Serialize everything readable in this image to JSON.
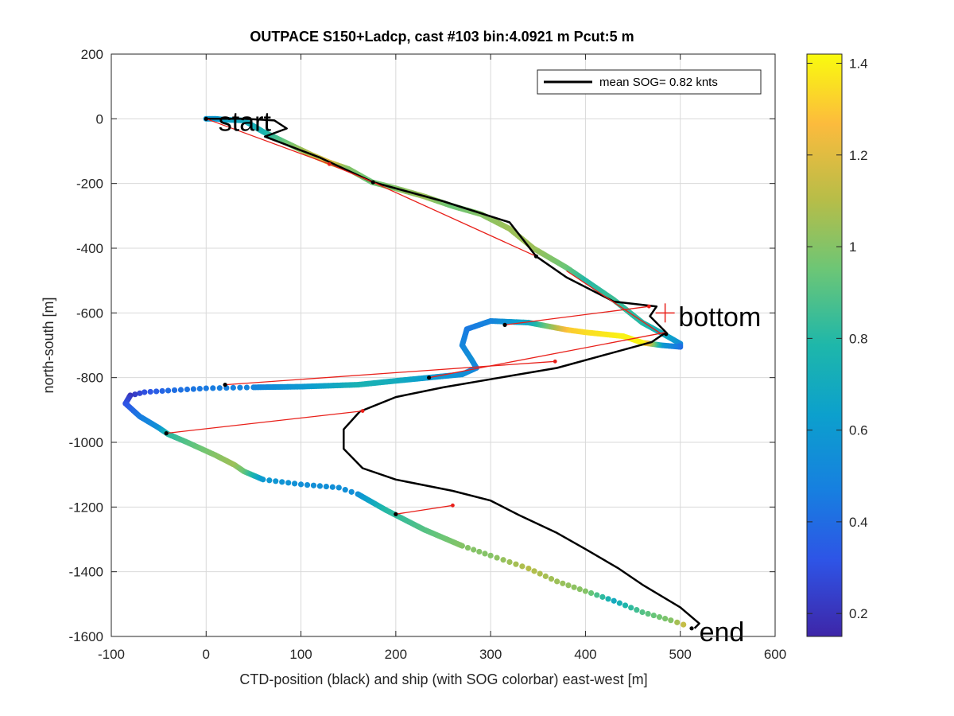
{
  "chart_data": {
    "type": "line",
    "title": "OUTPACE S150+Ladcp, cast #103 bin:4.0921 m  Pcut:5 m",
    "xlabel": "CTD-position (black) and ship (with SOG colorbar) east-west [m]",
    "ylabel": "north-south [m]",
    "xlim": [
      -100,
      600
    ],
    "ylim": [
      -1600,
      200
    ],
    "xticks": [
      -100,
      0,
      100,
      200,
      300,
      400,
      500,
      600
    ],
    "yticks": [
      -1600,
      -1400,
      -1200,
      -1000,
      -800,
      -600,
      -400,
      -200,
      0,
      200
    ],
    "grid": true,
    "legend": {
      "position": "top-right",
      "entries": [
        "mean SOG=  0.82 knts"
      ]
    },
    "colorbar": {
      "min": 0.15,
      "max": 1.42,
      "ticks": [
        0.2,
        0.4,
        0.6,
        0.8,
        1,
        1.2,
        1.4
      ],
      "tick_labels": [
        "0.2",
        "0.4",
        "0.6",
        "0.8",
        "1",
        "1.2",
        "1.4"
      ],
      "colormap": "parula"
    },
    "annotations": [
      {
        "text": "start",
        "x": 13,
        "y": -8
      },
      {
        "text": "bottom",
        "x": 498,
        "y": -612
      },
      {
        "text": "end",
        "x": 520,
        "y": -1585
      }
    ],
    "ctd_path": {
      "name": "CTD-position",
      "color": "#000000",
      "points": [
        [
          0,
          0
        ],
        [
          40,
          0
        ],
        [
          72,
          -5
        ],
        [
          85,
          -30
        ],
        [
          62,
          -55
        ],
        [
          120,
          -120
        ],
        [
          176,
          -196
        ],
        [
          250,
          -255
        ],
        [
          320,
          -320
        ],
        [
          348,
          -425
        ],
        [
          380,
          -490
        ],
        [
          430,
          -565
        ],
        [
          475,
          -580
        ],
        [
          468,
          -610
        ],
        [
          485,
          -660
        ],
        [
          470,
          -690
        ],
        [
          420,
          -730
        ],
        [
          370,
          -770
        ],
        [
          300,
          -805
        ],
        [
          250,
          -830
        ],
        [
          200,
          -860
        ],
        [
          162,
          -905
        ],
        [
          145,
          -960
        ],
        [
          145,
          -1020
        ],
        [
          165,
          -1080
        ],
        [
          200,
          -1115
        ],
        [
          260,
          -1150
        ],
        [
          300,
          -1180
        ],
        [
          330,
          -1225
        ],
        [
          370,
          -1280
        ],
        [
          400,
          -1330
        ],
        [
          435,
          -1390
        ],
        [
          460,
          -1440
        ],
        [
          500,
          -1510
        ],
        [
          520,
          -1560
        ],
        [
          515,
          -1575
        ]
      ]
    },
    "ship_track": {
      "name": "ship (SOG)",
      "points": [
        [
          0,
          0,
          0.6
        ],
        [
          10,
          0,
          0.6
        ],
        [
          20,
          -3,
          0.65
        ],
        [
          40,
          -5,
          0.7
        ],
        [
          60,
          -40,
          0.75
        ],
        [
          85,
          -75,
          0.95
        ],
        [
          110,
          -110,
          1.1
        ],
        [
          130,
          -135,
          1.2
        ],
        [
          150,
          -155,
          1.0
        ],
        [
          175,
          -196,
          0.95
        ],
        [
          200,
          -215,
          1.0
        ],
        [
          230,
          -240,
          1.05
        ],
        [
          260,
          -270,
          0.95
        ],
        [
          290,
          -295,
          1.0
        ],
        [
          320,
          -340,
          1.05
        ],
        [
          345,
          -400,
          1.05
        ],
        [
          380,
          -460,
          0.95
        ],
        [
          400,
          -500,
          0.8
        ],
        [
          430,
          -560,
          0.85
        ],
        [
          460,
          -630,
          0.8
        ],
        [
          485,
          -670,
          0.7
        ],
        [
          500,
          -695,
          0.55
        ],
        [
          500,
          -705,
          0.4
        ],
        [
          480,
          -700,
          0.6
        ],
        [
          460,
          -692,
          1.4
        ],
        [
          440,
          -672,
          1.4
        ],
        [
          400,
          -660,
          1.35
        ],
        [
          380,
          -652,
          1.3
        ],
        [
          340,
          -630,
          0.7
        ],
        [
          300,
          -625,
          0.5
        ],
        [
          275,
          -650,
          0.45
        ],
        [
          270,
          -700,
          0.5
        ],
        [
          280,
          -745,
          0.55
        ],
        [
          285,
          -770,
          0.5
        ],
        [
          270,
          -790,
          0.55
        ],
        [
          235,
          -800,
          0.6
        ],
        [
          200,
          -810,
          0.7
        ],
        [
          160,
          -822,
          0.75
        ],
        [
          100,
          -828,
          0.6
        ],
        [
          50,
          -830,
          0.5
        ],
        [
          0,
          -833,
          0.45
        ],
        [
          -40,
          -840,
          0.4
        ],
        [
          -65,
          -845,
          0.3
        ],
        [
          -80,
          -855,
          0.2
        ],
        [
          -85,
          -880,
          0.3
        ],
        [
          -70,
          -920,
          0.45
        ],
        [
          -50,
          -955,
          0.55
        ],
        [
          -40,
          -975,
          0.8
        ],
        [
          -20,
          -1000,
          0.9
        ],
        [
          10,
          -1040,
          1.0
        ],
        [
          30,
          -1070,
          1.05
        ],
        [
          40,
          -1090,
          0.95
        ],
        [
          60,
          -1115,
          0.6
        ],
        [
          100,
          -1130,
          0.55
        ],
        [
          140,
          -1140,
          0.55
        ],
        [
          160,
          -1160,
          0.55
        ],
        [
          190,
          -1210,
          0.8
        ],
        [
          230,
          -1270,
          0.9
        ],
        [
          270,
          -1320,
          1.0
        ],
        [
          300,
          -1350,
          1.0
        ],
        [
          340,
          -1390,
          1.1
        ],
        [
          370,
          -1430,
          1.05
        ],
        [
          400,
          -1460,
          1.0
        ],
        [
          430,
          -1490,
          0.7
        ],
        [
          460,
          -1525,
          0.9
        ],
        [
          490,
          -1550,
          1.0
        ],
        [
          510,
          -1570,
          1.2
        ]
      ]
    },
    "red_segments": [
      [
        [
          0,
          0
        ],
        [
          130,
          -140
        ],
        [
          176,
          -196
        ]
      ],
      [
        [
          176,
          -196
        ],
        [
          348,
          -425
        ]
      ],
      [
        [
          380,
          -470
        ],
        [
          480,
          -665
        ]
      ],
      [
        [
          315,
          -637
        ],
        [
          467,
          -580
        ]
      ],
      [
        [
          235,
          -800
        ],
        [
          485,
          -660
        ]
      ],
      [
        [
          20,
          -822
        ],
        [
          368,
          -750
        ]
      ],
      [
        [
          -42,
          -972
        ],
        [
          165,
          -903
        ]
      ],
      [
        [
          200,
          -1222
        ],
        [
          260,
          -1195
        ]
      ]
    ],
    "black_markers": [
      [
        0,
        0
      ],
      [
        176,
        -196
      ],
      [
        348,
        -425
      ],
      [
        485,
        -665
      ],
      [
        315,
        -637
      ],
      [
        235,
        -800
      ],
      [
        20,
        -822
      ],
      [
        -42,
        -972
      ],
      [
        200,
        -1222
      ],
      [
        512,
        -1575
      ]
    ],
    "red_markers": [
      [
        130,
        -140
      ],
      [
        467,
        -580
      ],
      [
        368,
        -750
      ],
      [
        165,
        -903
      ],
      [
        260,
        -1195
      ]
    ]
  }
}
